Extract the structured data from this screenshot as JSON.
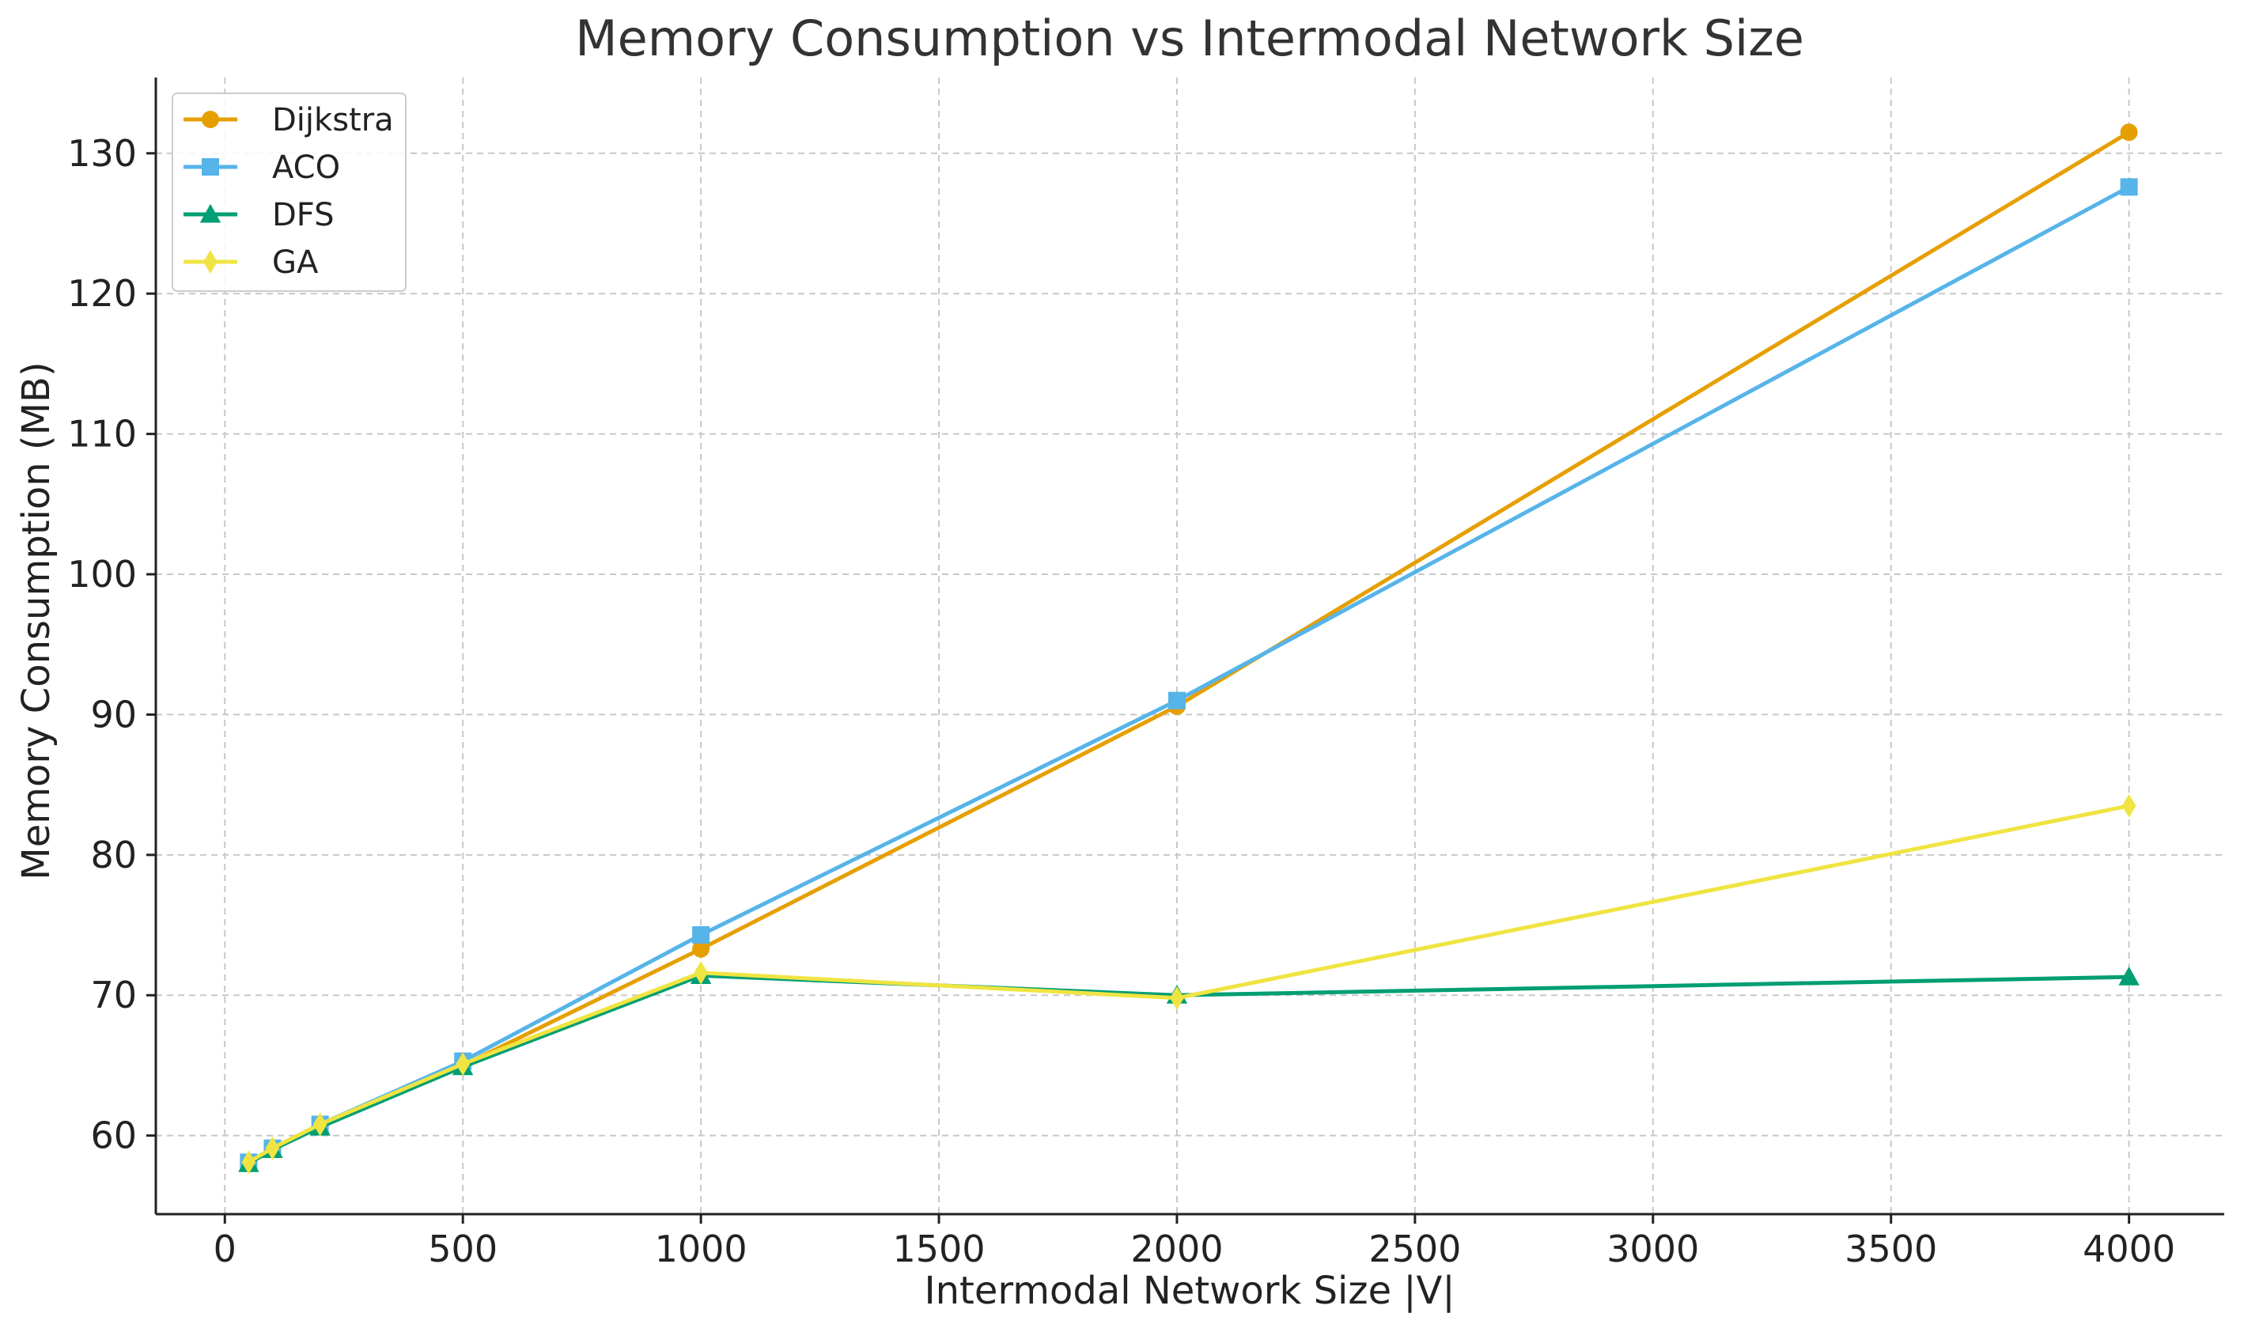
{
  "chart_data": {
    "type": "line",
    "title": "Memory Consumption vs Intermodal Network Size",
    "xlabel": "Intermodal Network Size |V|",
    "ylabel": "Memory Consumption (MB)",
    "xlim": [
      -145,
      4200
    ],
    "ylim": [
      54.4,
      135.4
    ],
    "xticks": [
      0,
      500,
      1000,
      1500,
      2000,
      2500,
      3000,
      3500,
      4000
    ],
    "yticks": [
      60,
      70,
      80,
      90,
      100,
      110,
      120,
      130
    ],
    "grid": true,
    "legend_position": "top-left",
    "x": [
      50,
      100,
      200,
      500,
      1000,
      2000,
      4000
    ],
    "series": [
      {
        "name": "Dijkstra",
        "color": "#E69F00",
        "marker": "circle",
        "values": [
          58.0,
          59.0,
          60.7,
          65.0,
          73.3,
          90.6,
          131.5
        ]
      },
      {
        "name": "ACO",
        "color": "#56B4E9",
        "marker": "square",
        "values": [
          58.1,
          59.1,
          60.8,
          65.3,
          74.3,
          91.0,
          127.6
        ]
      },
      {
        "name": "DFS",
        "color": "#009E73",
        "marker": "triangle",
        "values": [
          58.0,
          59.0,
          60.6,
          64.9,
          71.4,
          70.0,
          71.3
        ]
      },
      {
        "name": "GA",
        "color": "#F0E442",
        "marker": "diamond",
        "values": [
          58.1,
          59.1,
          60.8,
          65.1,
          71.6,
          69.8,
          83.5
        ]
      }
    ]
  }
}
